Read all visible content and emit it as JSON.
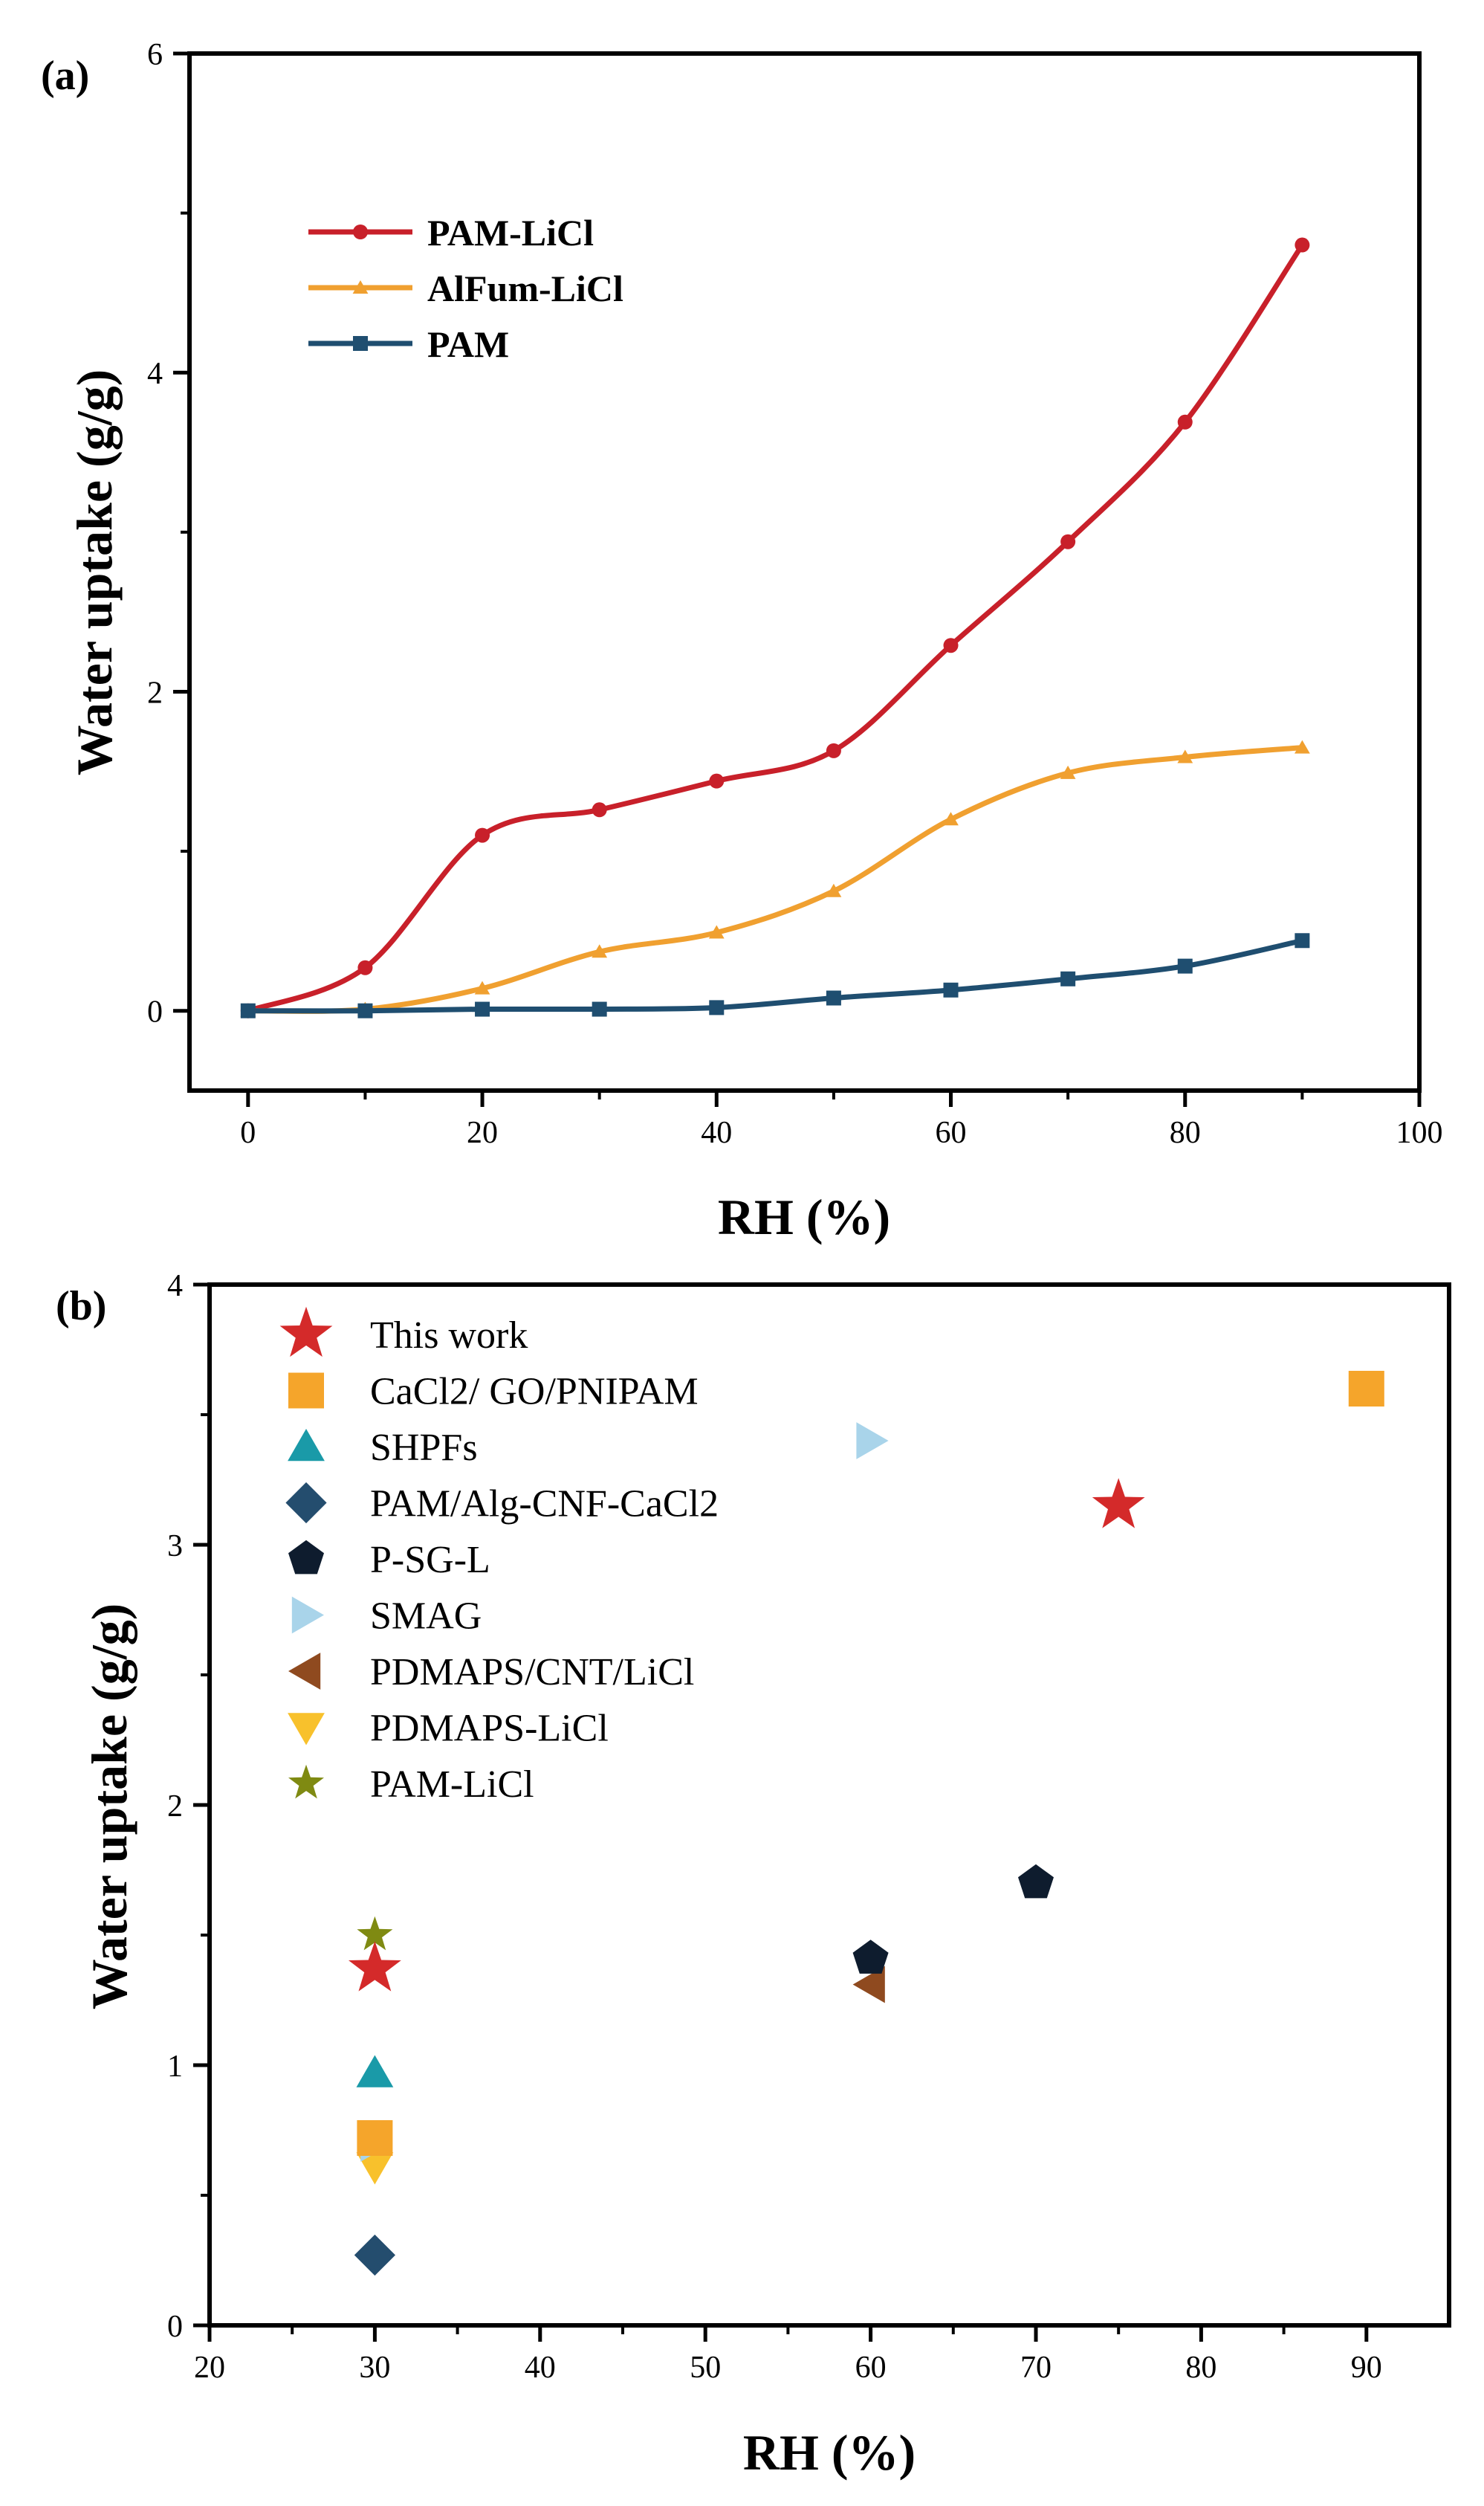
{
  "chart_data": [
    {
      "type": "line",
      "panel_label": "(a)",
      "xlabel": "RH (%)",
      "ylabel": "Water uptake (g/g)",
      "xlim": [
        -5,
        100
      ],
      "ylim": [
        -0.5,
        6
      ],
      "xticks": [
        0,
        20,
        40,
        60,
        80,
        100
      ],
      "yticks": [
        0,
        2,
        4,
        6
      ],
      "legend_position": "top-left",
      "x": [
        0,
        10,
        20,
        30,
        40,
        50,
        60,
        70,
        80,
        90
      ],
      "series": [
        {
          "name": "PAM-LiCl",
          "color": "#c8202a",
          "marker": "circle",
          "values": [
            0.0,
            0.27,
            1.1,
            1.26,
            1.44,
            1.63,
            2.29,
            2.94,
            3.69,
            4.8
          ]
        },
        {
          "name": "AlFum-LiCl",
          "color": "#f0a030",
          "marker": "triangle-up",
          "values": [
            0.0,
            0.01,
            0.14,
            0.37,
            0.49,
            0.75,
            1.2,
            1.49,
            1.59,
            1.65
          ]
        },
        {
          "name": "PAM",
          "color": "#1f4e70",
          "marker": "square",
          "values": [
            0.0,
            0.0,
            0.01,
            0.01,
            0.02,
            0.08,
            0.13,
            0.2,
            0.28,
            0.44
          ]
        }
      ]
    },
    {
      "type": "scatter",
      "panel_label": "(b)",
      "xlabel": "RH (%)",
      "ylabel": "Water uptake (g/g)",
      "xlim": [
        20,
        95
      ],
      "ylim": [
        0,
        4
      ],
      "xticks": [
        20,
        30,
        40,
        50,
        60,
        70,
        80,
        90
      ],
      "yticks": [
        0,
        1,
        2,
        3,
        4
      ],
      "legend_position": "top-left",
      "series": [
        {
          "name": "This work",
          "color": "#d42a2a",
          "marker": "star-big",
          "points": [
            [
              75,
              3.15
            ],
            [
              30,
              1.37
            ]
          ]
        },
        {
          "name": "CaCl2/ GO/PNIPAM",
          "color": "#f5a52b",
          "marker": "square",
          "points": [
            [
              90,
              3.6
            ],
            [
              30,
              0.72
            ]
          ]
        },
        {
          "name": "SHPFs",
          "color": "#1a9aa8",
          "marker": "triangle-up",
          "points": [
            [
              30,
              0.97
            ]
          ]
        },
        {
          "name": "PAM/Alg-CNF-CaCl2",
          "color": "#244d6e",
          "marker": "diamond",
          "points": [
            [
              30,
              0.27
            ]
          ]
        },
        {
          "name": "P-SG-L",
          "color": "#0e1c2e",
          "marker": "pentagon",
          "points": [
            [
              60,
              1.41
            ],
            [
              70,
              1.7
            ]
          ]
        },
        {
          "name": "SMAG",
          "color": "#a9d4ea",
          "marker": "triangle-right",
          "points": [
            [
              60,
              3.4
            ],
            [
              30,
              0.7
            ]
          ]
        },
        {
          "name": "PDMAPS/CNT/LiCl",
          "color": "#8f4a1f",
          "marker": "triangle-left",
          "points": [
            [
              60,
              1.31
            ]
          ]
        },
        {
          "name": "PDMAPS-LiCl",
          "color": "#f8c12c",
          "marker": "triangle-down",
          "points": [
            [
              30,
              0.61
            ]
          ]
        },
        {
          "name": "PAM-LiCl",
          "color": "#7f8a12",
          "marker": "star-small",
          "points": [
            [
              30,
              1.5
            ]
          ]
        }
      ]
    }
  ]
}
